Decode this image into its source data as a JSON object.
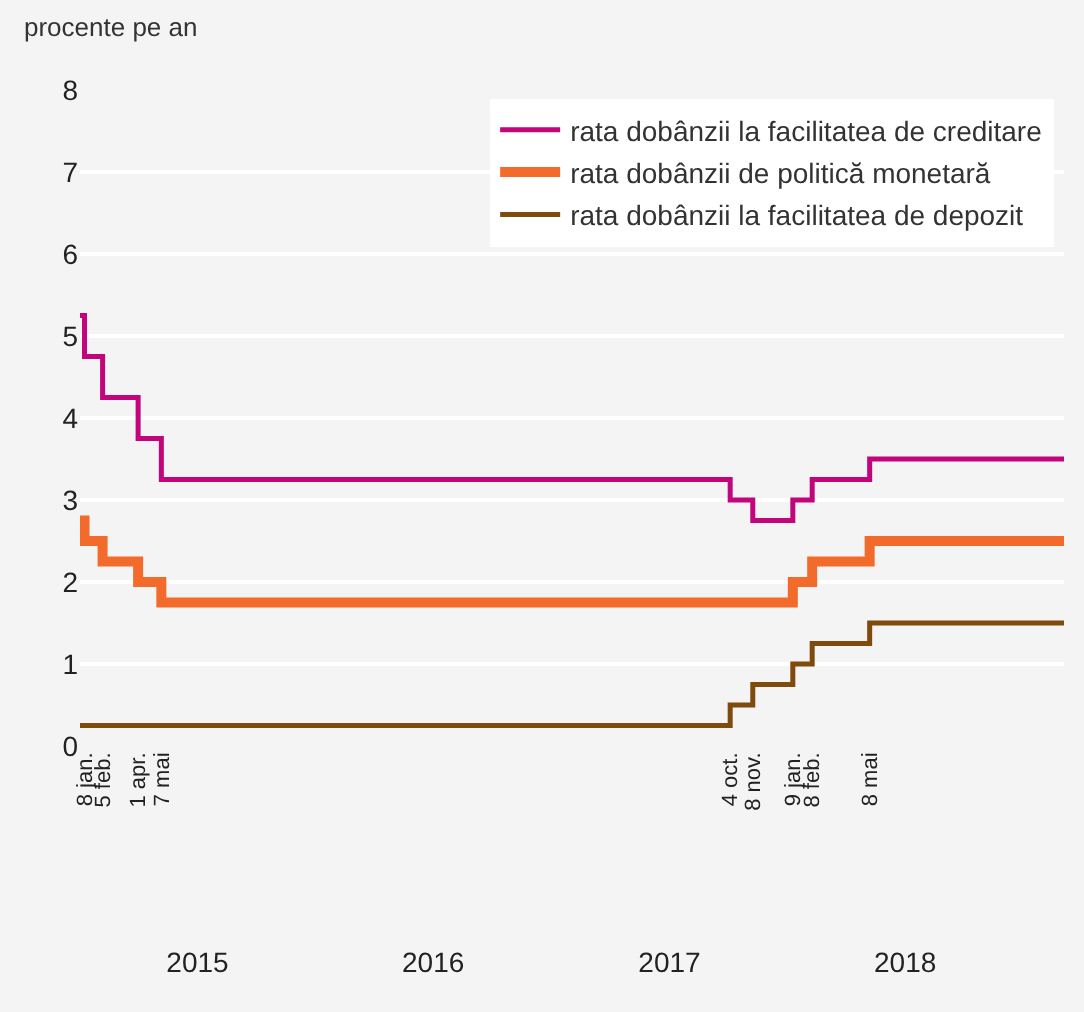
{
  "chart_data": {
    "type": "step",
    "ylabel": "procente pe an",
    "x": [
      "2015-01-01",
      "2015-01-08",
      "2015-02-05",
      "2015-04-01",
      "2015-05-07",
      "2017-10-04",
      "2017-11-08",
      "2018-01-09",
      "2018-02-08",
      "2018-05-08",
      "2019-03-05"
    ],
    "series": [
      {
        "name": "rata dobânzii la facilitatea de creditare",
        "color": "#c2057a",
        "values": [
          5.25,
          4.75,
          4.25,
          3.75,
          3.25,
          3.0,
          2.75,
          3.0,
          3.25,
          3.5,
          3.5
        ]
      },
      {
        "name": "rata dobânzii de politică monetară",
        "color": "#f26b2b",
        "values": [
          2.75,
          2.5,
          2.25,
          2.0,
          1.75,
          1.75,
          1.75,
          2.0,
          2.25,
          2.5,
          2.5
        ]
      },
      {
        "name": "rata dobânzii la facilitatea de depozit",
        "color": "#7f4a0d",
        "values": [
          0.25,
          0.25,
          0.25,
          0.25,
          0.25,
          0.5,
          0.75,
          1.0,
          1.25,
          1.5,
          1.5
        ]
      }
    ],
    "xlim": [
      "2015-01-01",
      "2019-03-05"
    ],
    "xticks": [
      {
        "value": "2015-01-08",
        "label": "8 jan."
      },
      {
        "value": "2015-02-05",
        "label": "5 feb."
      },
      {
        "value": "2015-04-01",
        "label": "1 apr."
      },
      {
        "value": "2015-05-07",
        "label": "7 mai"
      },
      {
        "value": "2017-10-04",
        "label": "4 oct."
      },
      {
        "value": "2017-11-08",
        "label": "8 nov."
      },
      {
        "value": "2018-01-09",
        "label": "9 jan."
      },
      {
        "value": "2018-02-08",
        "label": "8 feb."
      },
      {
        "value": "2018-05-08",
        "label": "8 mai"
      }
    ],
    "x2lim": [
      "2015-01-01",
      "2019-03-05"
    ],
    "x2ticks": [
      {
        "value": "2015-07-02",
        "label": "2015"
      },
      {
        "value": "2016-07-01",
        "label": "2016"
      },
      {
        "value": "2017-07-02",
        "label": "2017"
      },
      {
        "value": "2018-07-02",
        "label": "2018"
      }
    ],
    "ylim": [
      0,
      8
    ],
    "yticks": [
      0,
      1,
      2,
      3,
      4,
      5,
      6,
      7,
      8
    ],
    "grid": "y",
    "legend": "top right",
    "line_style": "solid"
  }
}
